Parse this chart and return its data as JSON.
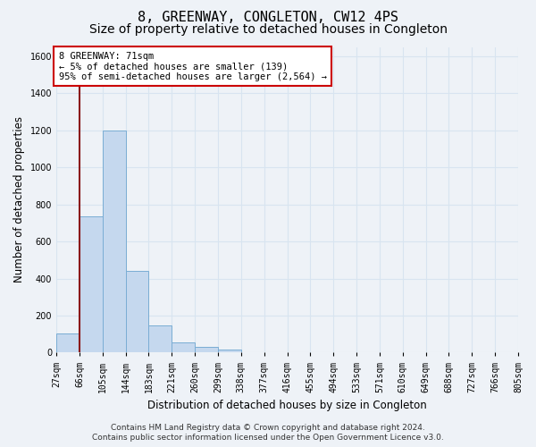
{
  "title": "8, GREENWAY, CONGLETON, CW12 4PS",
  "subtitle": "Size of property relative to detached houses in Congleton",
  "xlabel": "Distribution of detached houses by size in Congleton",
  "ylabel": "Number of detached properties",
  "bin_labels": [
    "27sqm",
    "66sqm",
    "105sqm",
    "144sqm",
    "183sqm",
    "221sqm",
    "260sqm",
    "299sqm",
    "338sqm",
    "377sqm",
    "416sqm",
    "455sqm",
    "494sqm",
    "533sqm",
    "571sqm",
    "610sqm",
    "649sqm",
    "688sqm",
    "727sqm",
    "766sqm",
    "805sqm"
  ],
  "bar_heights": [
    105,
    735,
    1200,
    440,
    145,
    55,
    33,
    18,
    0,
    0,
    0,
    0,
    0,
    0,
    0,
    0,
    0,
    0,
    0,
    0
  ],
  "bar_color": "#c5d8ee",
  "bar_edge_color": "#7aadd4",
  "ylim": [
    0,
    1650
  ],
  "yticks": [
    0,
    200,
    400,
    600,
    800,
    1000,
    1200,
    1400,
    1600
  ],
  "vline_x": 1,
  "vline_color": "#8b1a1a",
  "annotation_text": "8 GREENWAY: 71sqm\n← 5% of detached houses are smaller (139)\n95% of semi-detached houses are larger (2,564) →",
  "annotation_box_color": "#cc0000",
  "footer_line1": "Contains HM Land Registry data © Crown copyright and database right 2024.",
  "footer_line2": "Contains public sector information licensed under the Open Government Licence v3.0.",
  "background_color": "#eef2f7",
  "grid_color": "#d8e4f0",
  "title_fontsize": 11,
  "subtitle_fontsize": 10,
  "axis_label_fontsize": 8.5,
  "tick_fontsize": 7,
  "footer_fontsize": 6.5,
  "ann_fontsize": 7.5
}
